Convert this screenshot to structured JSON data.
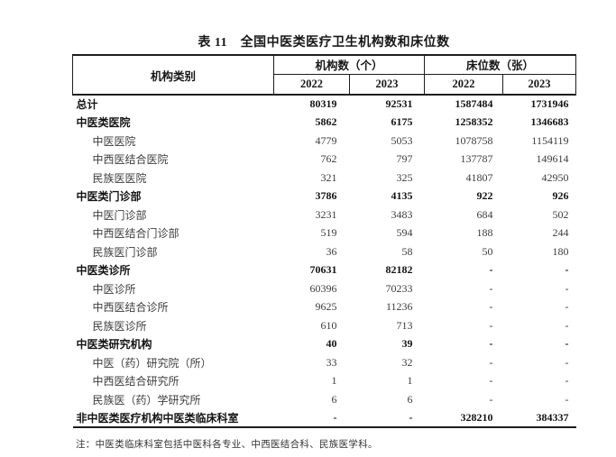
{
  "title": "表 11　全国中医类医疗卫生机构数和床位数",
  "note": "注：中医类临床科室包括中医科各专业、中西医结合科、民族医学科。",
  "table": {
    "row_header": "机构类别",
    "groups": [
      {
        "label": "机构数（个）",
        "years": [
          "2022",
          "2023"
        ]
      },
      {
        "label": "床位数（张）",
        "years": [
          "2022",
          "2023"
        ]
      }
    ],
    "rows": [
      {
        "label": "总计",
        "bold": true,
        "indent": false,
        "values": [
          "80319",
          "92531",
          "1587484",
          "1731946"
        ]
      },
      {
        "label": "中医类医院",
        "bold": true,
        "indent": false,
        "values": [
          "5862",
          "6175",
          "1258352",
          "1346683"
        ]
      },
      {
        "label": "中医医院",
        "bold": false,
        "indent": true,
        "values": [
          "4779",
          "5053",
          "1078758",
          "1154119"
        ]
      },
      {
        "label": "中西医结合医院",
        "bold": false,
        "indent": true,
        "values": [
          "762",
          "797",
          "137787",
          "149614"
        ]
      },
      {
        "label": "民族医医院",
        "bold": false,
        "indent": true,
        "values": [
          "321",
          "325",
          "41807",
          "42950"
        ]
      },
      {
        "label": "中医类门诊部",
        "bold": true,
        "indent": false,
        "values": [
          "3786",
          "4135",
          "922",
          "926"
        ]
      },
      {
        "label": "中医门诊部",
        "bold": false,
        "indent": true,
        "values": [
          "3231",
          "3483",
          "684",
          "502"
        ]
      },
      {
        "label": "中西医结合门诊部",
        "bold": false,
        "indent": true,
        "values": [
          "519",
          "594",
          "188",
          "244"
        ]
      },
      {
        "label": "民族医门诊部",
        "bold": false,
        "indent": true,
        "values": [
          "36",
          "58",
          "50",
          "180"
        ]
      },
      {
        "label": "中医类诊所",
        "bold": true,
        "indent": false,
        "values": [
          "70631",
          "82182",
          "-",
          "-"
        ]
      },
      {
        "label": "中医诊所",
        "bold": false,
        "indent": true,
        "values": [
          "60396",
          "70233",
          "-",
          "-"
        ]
      },
      {
        "label": "中西医结合诊所",
        "bold": false,
        "indent": true,
        "values": [
          "9625",
          "11236",
          "-",
          "-"
        ]
      },
      {
        "label": "民族医诊所",
        "bold": false,
        "indent": true,
        "values": [
          "610",
          "713",
          "-",
          "-"
        ]
      },
      {
        "label": "中医类研究机构",
        "bold": true,
        "indent": false,
        "values": [
          "40",
          "39",
          "-",
          "-"
        ]
      },
      {
        "label": "中医（药）研究院（所）",
        "bold": false,
        "indent": true,
        "values": [
          "33",
          "32",
          "-",
          "-"
        ]
      },
      {
        "label": "中西医结合研究所",
        "bold": false,
        "indent": true,
        "values": [
          "1",
          "1",
          "-",
          "-"
        ]
      },
      {
        "label": "民族医（药）学研究所",
        "bold": false,
        "indent": true,
        "values": [
          "6",
          "6",
          "-",
          "-"
        ]
      },
      {
        "label": "非中医类医疗机构中医类临床科室",
        "bold": true,
        "indent": false,
        "values": [
          "-",
          "-",
          "328210",
          "384337"
        ]
      }
    ]
  }
}
